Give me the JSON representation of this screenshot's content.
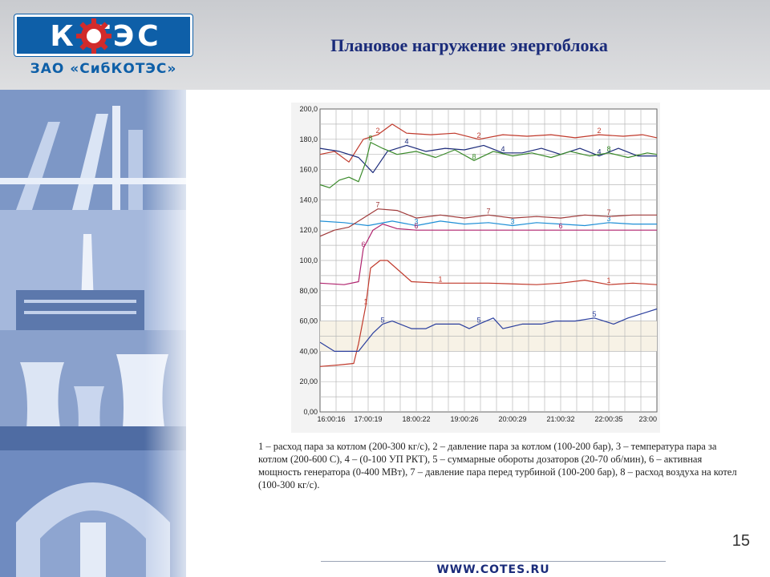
{
  "logo": {
    "brand": "К  ТЭС",
    "company": "ЗАО «СибКОТЭС»",
    "brand_color": "#0e5fa8"
  },
  "slide": {
    "title": "Плановое нагружение энергоблока",
    "page_number": "15",
    "footer_url": "WWW.COTES.RU"
  },
  "caption": "1 – расход пара за котлом (200-300 кг/с), 2 – давление пара за котлом (100-200 бар), 3 – температура пара за котлом (200-600 С), 4 – (0-100 УП РКТ), 5 – суммарные обороты дозаторов (20-70 об/мин), 6 – активная мощность генератора (0-400 МВт), 7 – давление пара перед турбиной (100-200 бар), 8 – расход воздуха на котел (100-300 кг/с).",
  "chart_data": {
    "type": "line",
    "title": "",
    "xlabel": "",
    "ylabel": "",
    "ylim": [
      0,
      200
    ],
    "xlim": [
      0,
      7
    ],
    "grid": true,
    "y_ticks": [
      "0,00",
      "20,00",
      "40,00",
      "60,00",
      "80,00",
      "100,0",
      "120,0",
      "140,0",
      "160,0",
      "180,0",
      "200,0"
    ],
    "x_ticks": [
      "16:00:16",
      "17:00:19",
      "18:00:22",
      "19:00:26",
      "20:00:29",
      "21:00:32",
      "22:00:35",
      "23:00"
    ],
    "series": [
      {
        "name": "1",
        "color": "#c0392b",
        "x": [
          0,
          0.4,
          0.7,
          0.8,
          0.95,
          1.05,
          1.25,
          1.4,
          1.9,
          2.5,
          3.5,
          4.5,
          5.0,
          5.5,
          6.0,
          6.5,
          7.0
        ],
        "y": [
          30,
          31,
          32,
          45,
          70,
          95,
          100,
          100,
          86,
          85,
          85,
          84,
          85,
          87,
          84,
          85,
          84
        ]
      },
      {
        "name": "2",
        "color": "#c0392b",
        "x": [
          0,
          0.3,
          0.6,
          0.9,
          1.2,
          1.5,
          1.8,
          2.3,
          2.8,
          3.3,
          3.8,
          4.3,
          4.8,
          5.3,
          5.8,
          6.3,
          6.7,
          7.0
        ],
        "y": [
          170,
          172,
          165,
          180,
          183,
          190,
          184,
          183,
          184,
          180,
          183,
          182,
          183,
          181,
          183,
          182,
          183,
          181
        ]
      },
      {
        "name": "3",
        "color": "#1f8fd6",
        "x": [
          0,
          0.5,
          1.0,
          1.5,
          2.0,
          2.5,
          3.0,
          3.5,
          4.0,
          4.5,
          5.0,
          5.5,
          6.0,
          6.5,
          7.0
        ],
        "y": [
          126,
          125,
          123,
          126,
          123,
          126,
          124,
          125,
          123,
          125,
          124,
          123,
          125,
          124,
          124
        ]
      },
      {
        "name": "4",
        "color": "#1b2a7a",
        "x": [
          0,
          0.4,
          0.8,
          1.1,
          1.4,
          1.8,
          2.2,
          2.6,
          3.0,
          3.4,
          3.8,
          4.2,
          4.6,
          5.0,
          5.4,
          5.8,
          6.2,
          6.6,
          7.0
        ],
        "y": [
          174,
          172,
          168,
          158,
          172,
          176,
          172,
          174,
          173,
          176,
          171,
          171,
          174,
          170,
          174,
          169,
          174,
          169,
          169
        ]
      },
      {
        "name": "5",
        "color": "#2b3f9e",
        "x": [
          0,
          0.2,
          0.3,
          0.8,
          0.9,
          1.1,
          1.3,
          1.5,
          1.9,
          2.2,
          2.4,
          2.9,
          3.1,
          3.3,
          3.6,
          3.8,
          4.2,
          4.6,
          4.9,
          5.3,
          5.7,
          6.1,
          6.4,
          6.8,
          7.0
        ],
        "y": [
          46,
          42,
          40,
          40,
          44,
          52,
          58,
          60,
          55,
          55,
          58,
          58,
          55,
          58,
          62,
          55,
          58,
          58,
          60,
          60,
          62,
          58,
          62,
          66,
          68
        ]
      },
      {
        "name": "6",
        "color": "#b0246e",
        "x": [
          0,
          0.5,
          0.8,
          0.9,
          1.1,
          1.3,
          1.6,
          2.0,
          3.0,
          4.0,
          5.0,
          6.0,
          7.0
        ],
        "y": [
          85,
          84,
          86,
          108,
          120,
          124,
          121,
          120,
          120,
          120,
          120,
          120,
          120
        ]
      },
      {
        "name": "7",
        "color": "#a03a3a",
        "x": [
          0,
          0.3,
          0.6,
          0.9,
          1.2,
          1.6,
          2.0,
          2.5,
          3.0,
          3.5,
          4.0,
          4.5,
          5.0,
          5.5,
          6.0,
          6.5,
          7.0
        ],
        "y": [
          116,
          120,
          122,
          128,
          134,
          133,
          128,
          130,
          128,
          130,
          128,
          129,
          128,
          130,
          129,
          130,
          130
        ]
      },
      {
        "name": "8",
        "color": "#3a8a2a",
        "x": [
          0,
          0.2,
          0.4,
          0.6,
          0.8,
          0.95,
          1.05,
          1.3,
          1.6,
          2.0,
          2.4,
          2.8,
          3.2,
          3.6,
          4.0,
          4.4,
          4.8,
          5.2,
          5.6,
          6.0,
          6.4,
          6.8,
          7.0
        ],
        "y": [
          150,
          148,
          153,
          155,
          152,
          165,
          178,
          174,
          170,
          172,
          168,
          173,
          166,
          172,
          169,
          171,
          168,
          172,
          169,
          171,
          168,
          171,
          170
        ]
      }
    ]
  }
}
